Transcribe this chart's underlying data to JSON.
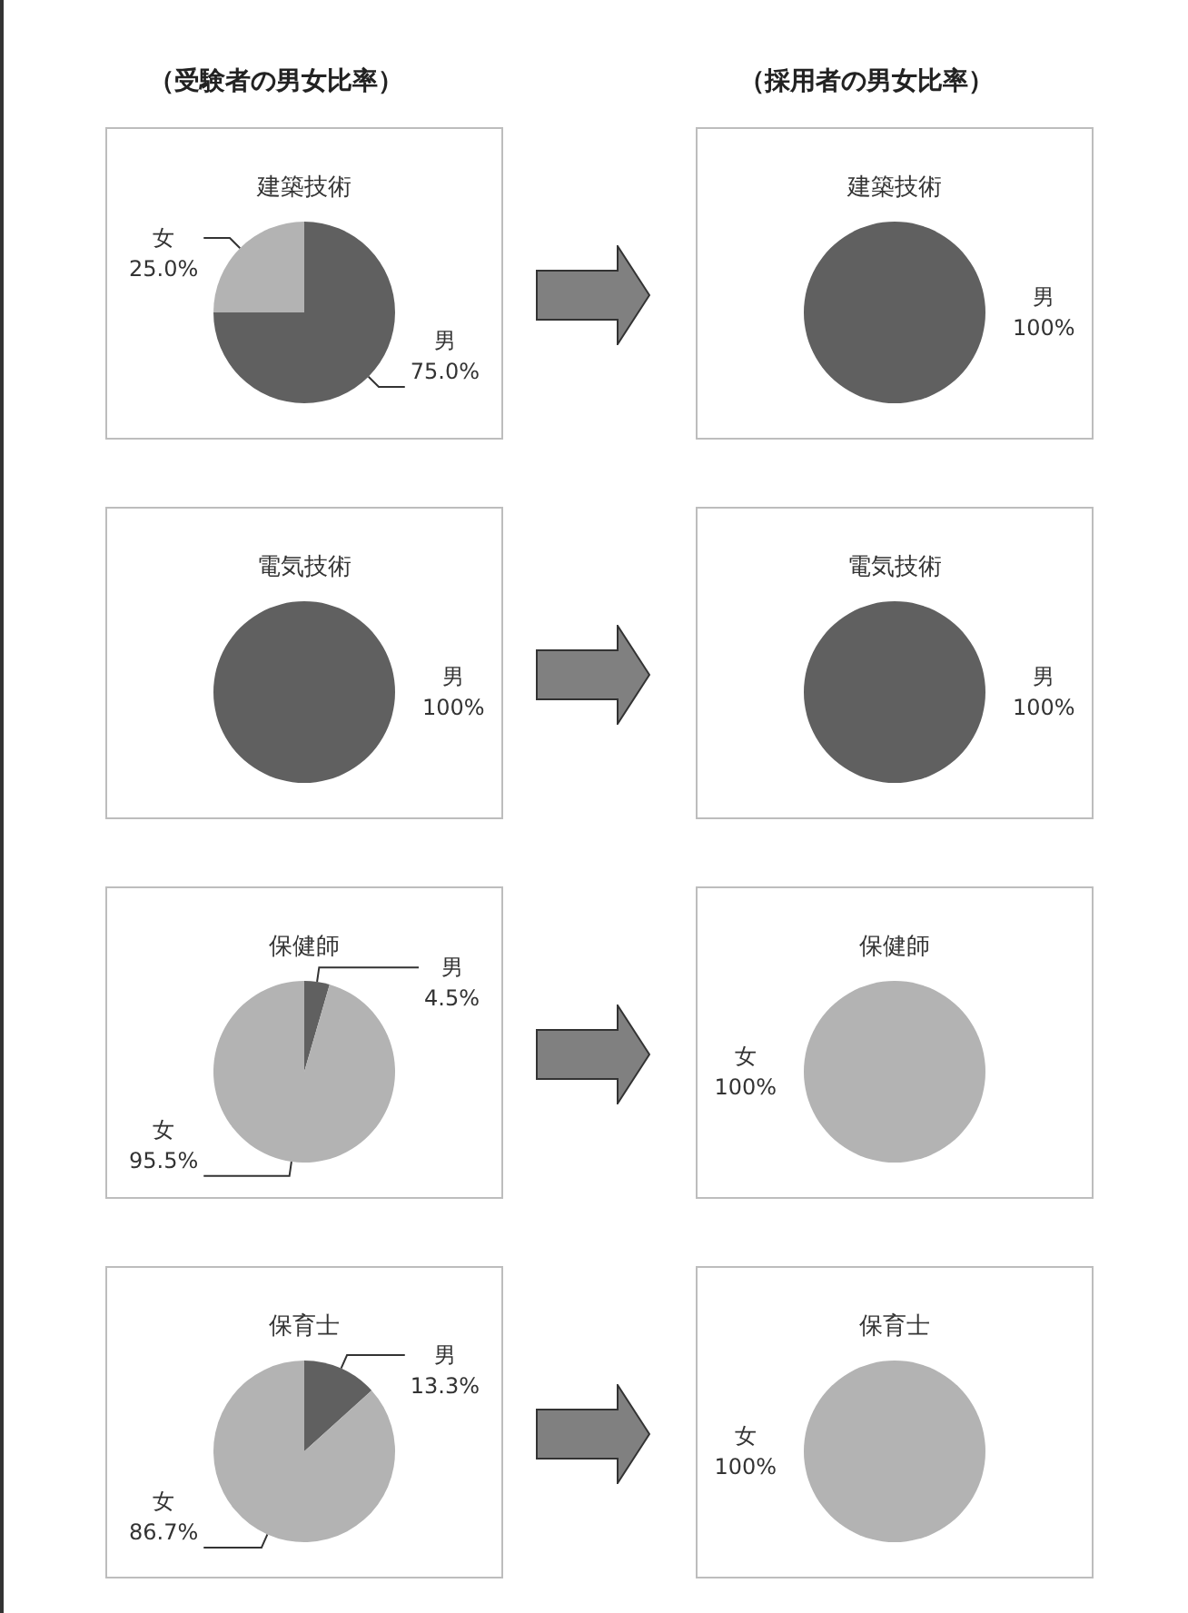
{
  "chart_data": [
    {
      "type": "pie",
      "title": "建築技術",
      "annotations": [
        "（受験者の男女比率）"
      ],
      "categories": [
        "男",
        "女"
      ],
      "values": [
        75.0,
        25.0
      ],
      "value_labels": [
        "75.0%",
        "25.0%"
      ],
      "colors": [
        "#606060",
        "#b3b3b3"
      ]
    },
    {
      "type": "pie",
      "title": "建築技術",
      "annotations": [
        "（採用者の男女比率）"
      ],
      "categories": [
        "男"
      ],
      "values": [
        100
      ],
      "value_labels": [
        "100%"
      ],
      "colors": [
        "#606060"
      ]
    },
    {
      "type": "pie",
      "title": "電気技術",
      "categories": [
        "男"
      ],
      "values": [
        100
      ],
      "value_labels": [
        "100%"
      ],
      "colors": [
        "#606060"
      ]
    },
    {
      "type": "pie",
      "title": "電気技術",
      "categories": [
        "男"
      ],
      "values": [
        100
      ],
      "value_labels": [
        "100%"
      ],
      "colors": [
        "#606060"
      ]
    },
    {
      "type": "pie",
      "title": "保健師",
      "categories": [
        "男",
        "女"
      ],
      "values": [
        4.5,
        95.5
      ],
      "value_labels": [
        "4.5%",
        "95.5%"
      ],
      "colors": [
        "#606060",
        "#b3b3b3"
      ]
    },
    {
      "type": "pie",
      "title": "保健師",
      "categories": [
        "女"
      ],
      "values": [
        100
      ],
      "value_labels": [
        "100%"
      ],
      "colors": [
        "#b3b3b3"
      ]
    },
    {
      "type": "pie",
      "title": "保育士",
      "categories": [
        "男",
        "女"
      ],
      "values": [
        13.3,
        86.7
      ],
      "value_labels": [
        "13.3%",
        "86.7%"
      ],
      "colors": [
        "#606060",
        "#b3b3b3"
      ]
    },
    {
      "type": "pie",
      "title": "保育士",
      "categories": [
        "女"
      ],
      "values": [
        100
      ],
      "value_labels": [
        "100%"
      ],
      "colors": [
        "#b3b3b3"
      ]
    }
  ]
}
